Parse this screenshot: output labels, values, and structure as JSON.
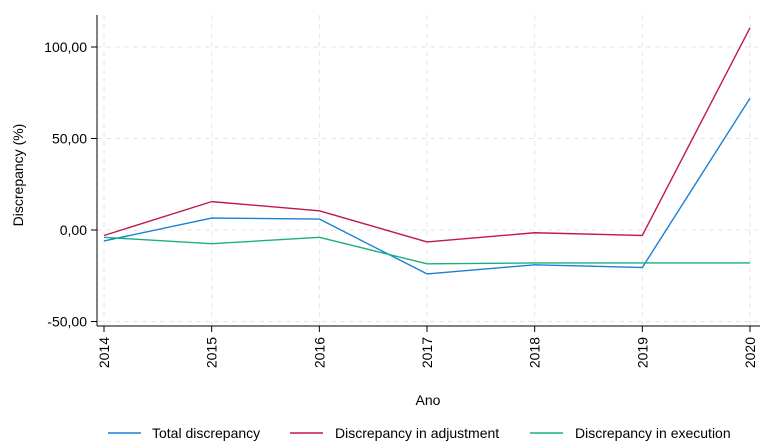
{
  "chart_data": {
    "type": "line",
    "xlabel": "Ano",
    "ylabel": "Discrepancy (%)",
    "x": [
      2014,
      2015,
      2016,
      2017,
      2018,
      2019,
      2020
    ],
    "x_tick_labels": [
      "2014",
      "2015",
      "2016",
      "2017",
      "2018",
      "2019",
      "2020"
    ],
    "y_ticks": [
      -50,
      0,
      50,
      100
    ],
    "y_tick_labels": [
      "-50,00",
      "0,00",
      "50,00",
      "100,00"
    ],
    "ylim": [
      -55,
      117
    ],
    "grid": true,
    "legend_position": "bottom",
    "series": [
      {
        "name": "Total discrepancy",
        "color": "#1a7fd6",
        "values": [
          -6,
          6.5,
          6,
          -24,
          -19,
          -20.5,
          72
        ]
      },
      {
        "name": "Discrepancy in adjustment",
        "color": "#c1174a",
        "values": [
          -3,
          15.5,
          10.5,
          -6.5,
          -1.5,
          -3,
          110.5
        ]
      },
      {
        "name": "Discrepancy in execution",
        "color": "#1ab07c",
        "values": [
          -4,
          -7.5,
          -4,
          -18.5,
          -18,
          -18,
          -18
        ]
      }
    ]
  }
}
